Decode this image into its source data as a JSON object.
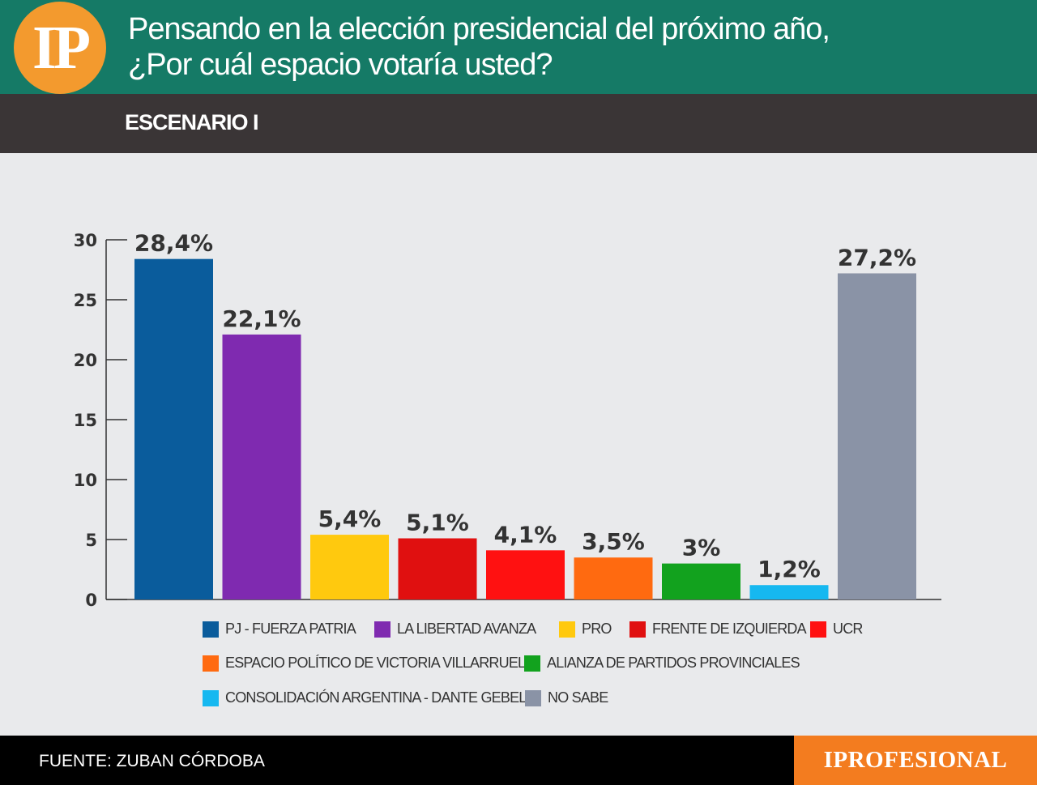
{
  "header": {
    "logo_text": "IP",
    "title_line1": "Pensando en la elección presidencial del próximo año,",
    "title_line2": "¿Por cuál espacio votaría usted?"
  },
  "subheader": {
    "scenario": "ESCENARIO I"
  },
  "colors": {
    "header_bg": "#157a66",
    "logo_bg": "#f39a2e",
    "subheader_bg": "#3a3536",
    "brand_bg": "#f37c1f"
  },
  "chart_data": {
    "type": "bar",
    "categories": [
      "PJ - FUERZA PATRIA",
      "LA LIBERTAD AVANZA",
      "PRO",
      "FRENTE DE IZQUIERDA",
      "UCR",
      "ESPACIO POLÍTICO DE VICTORIA VILLARRUEL",
      "ALIANZA DE PARTIDOS PROVINCIALES",
      "CONSOLIDACIÓN ARGENTINA - DANTE GEBEL",
      "NO SABE"
    ],
    "values": [
      28.4,
      22.1,
      5.4,
      5.1,
      4.1,
      3.5,
      3,
      1.2,
      27.2
    ],
    "value_labels": [
      "28,4%",
      "22,1%",
      "5,4%",
      "5,1%",
      "4,1%",
      "3,5%",
      "3%",
      "1,2%",
      "27,2%"
    ],
    "colors": [
      "#0a5c9c",
      "#7f2ab0",
      "#ffc90e",
      "#e01010",
      "#ff1111",
      "#ff6a10",
      "#12a21e",
      "#16b8f0",
      "#8a93a6"
    ],
    "ylim": [
      0,
      30
    ],
    "yticks": [
      0,
      5,
      10,
      15,
      20,
      25,
      30
    ],
    "legend_position": "bottom",
    "grid": false
  },
  "footer": {
    "source": "FUENTE: ZUBAN CÓRDOBA",
    "brand": "IPROFESIONAL"
  }
}
